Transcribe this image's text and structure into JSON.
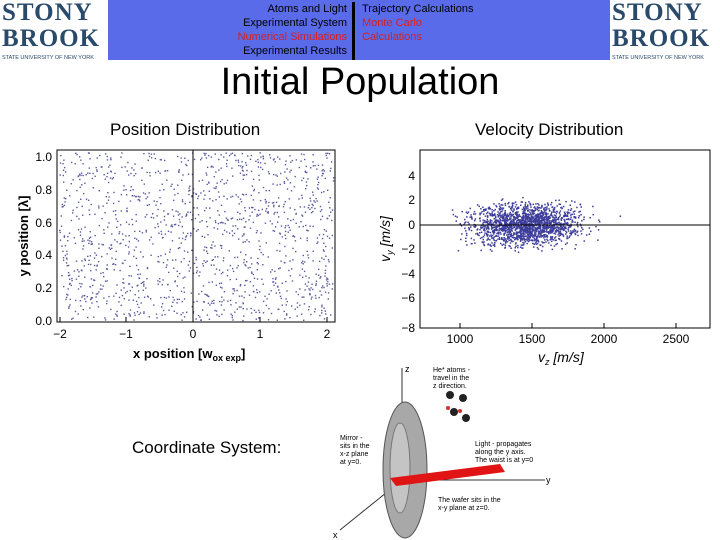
{
  "header": {
    "logo": {
      "line1": "STONY",
      "line2": "BROOK",
      "subtitle": "STATE UNIVERSITY OF NEW YORK"
    },
    "nav_left": [
      "Atoms and Light",
      "Experimental System",
      "Numerical Simulations",
      "Experimental Results"
    ],
    "nav_right": [
      "Trajectory Calculations",
      "Monte Carlo",
      "Calculations"
    ],
    "active_color": "#d81e1e",
    "band_color": "#5a6bea"
  },
  "title": "Initial Population",
  "position_plot": {
    "heading": "Position Distribution",
    "xlabel": "x position [w",
    "xlabel_sub": "ox exp",
    "xlabel_end": "]",
    "ylabel": "y position [λ]",
    "xticks": [
      "−2",
      "−1",
      "0",
      "1",
      "2"
    ],
    "yticks": [
      "0.0",
      "0.2",
      "0.4",
      "0.6",
      "0.8",
      "1.0"
    ]
  },
  "velocity_plot": {
    "heading": "Velocity Distribution",
    "xlabel": "v",
    "xlabel_sub": "z",
    "xlabel_end": " [m/s]",
    "ylabel": "v",
    "ylabel_sub": "y",
    "ylabel_end": " [m/s]",
    "xticks": [
      "1000",
      "1500",
      "2000",
      "2500"
    ],
    "yticks": [
      "4",
      "2",
      "0",
      "−2",
      "−4",
      "−6",
      "−8"
    ]
  },
  "coordinate_label": "Coordinate System:",
  "diagram": {
    "axis_z": "z",
    "axis_y": "y",
    "axis_x": "x",
    "atoms_note": [
      "He* atoms -",
      "travel in the",
      "z direction."
    ],
    "mirror_note": [
      "Mirror -",
      "sits in the",
      "x-z plane",
      "at y=0."
    ],
    "light_note": [
      "Light - propagates",
      "along the y axis.",
      "The waist is at y=0"
    ],
    "wafer_note": [
      "The wafer sits in the",
      "x-y plane at z=0."
    ]
  }
}
